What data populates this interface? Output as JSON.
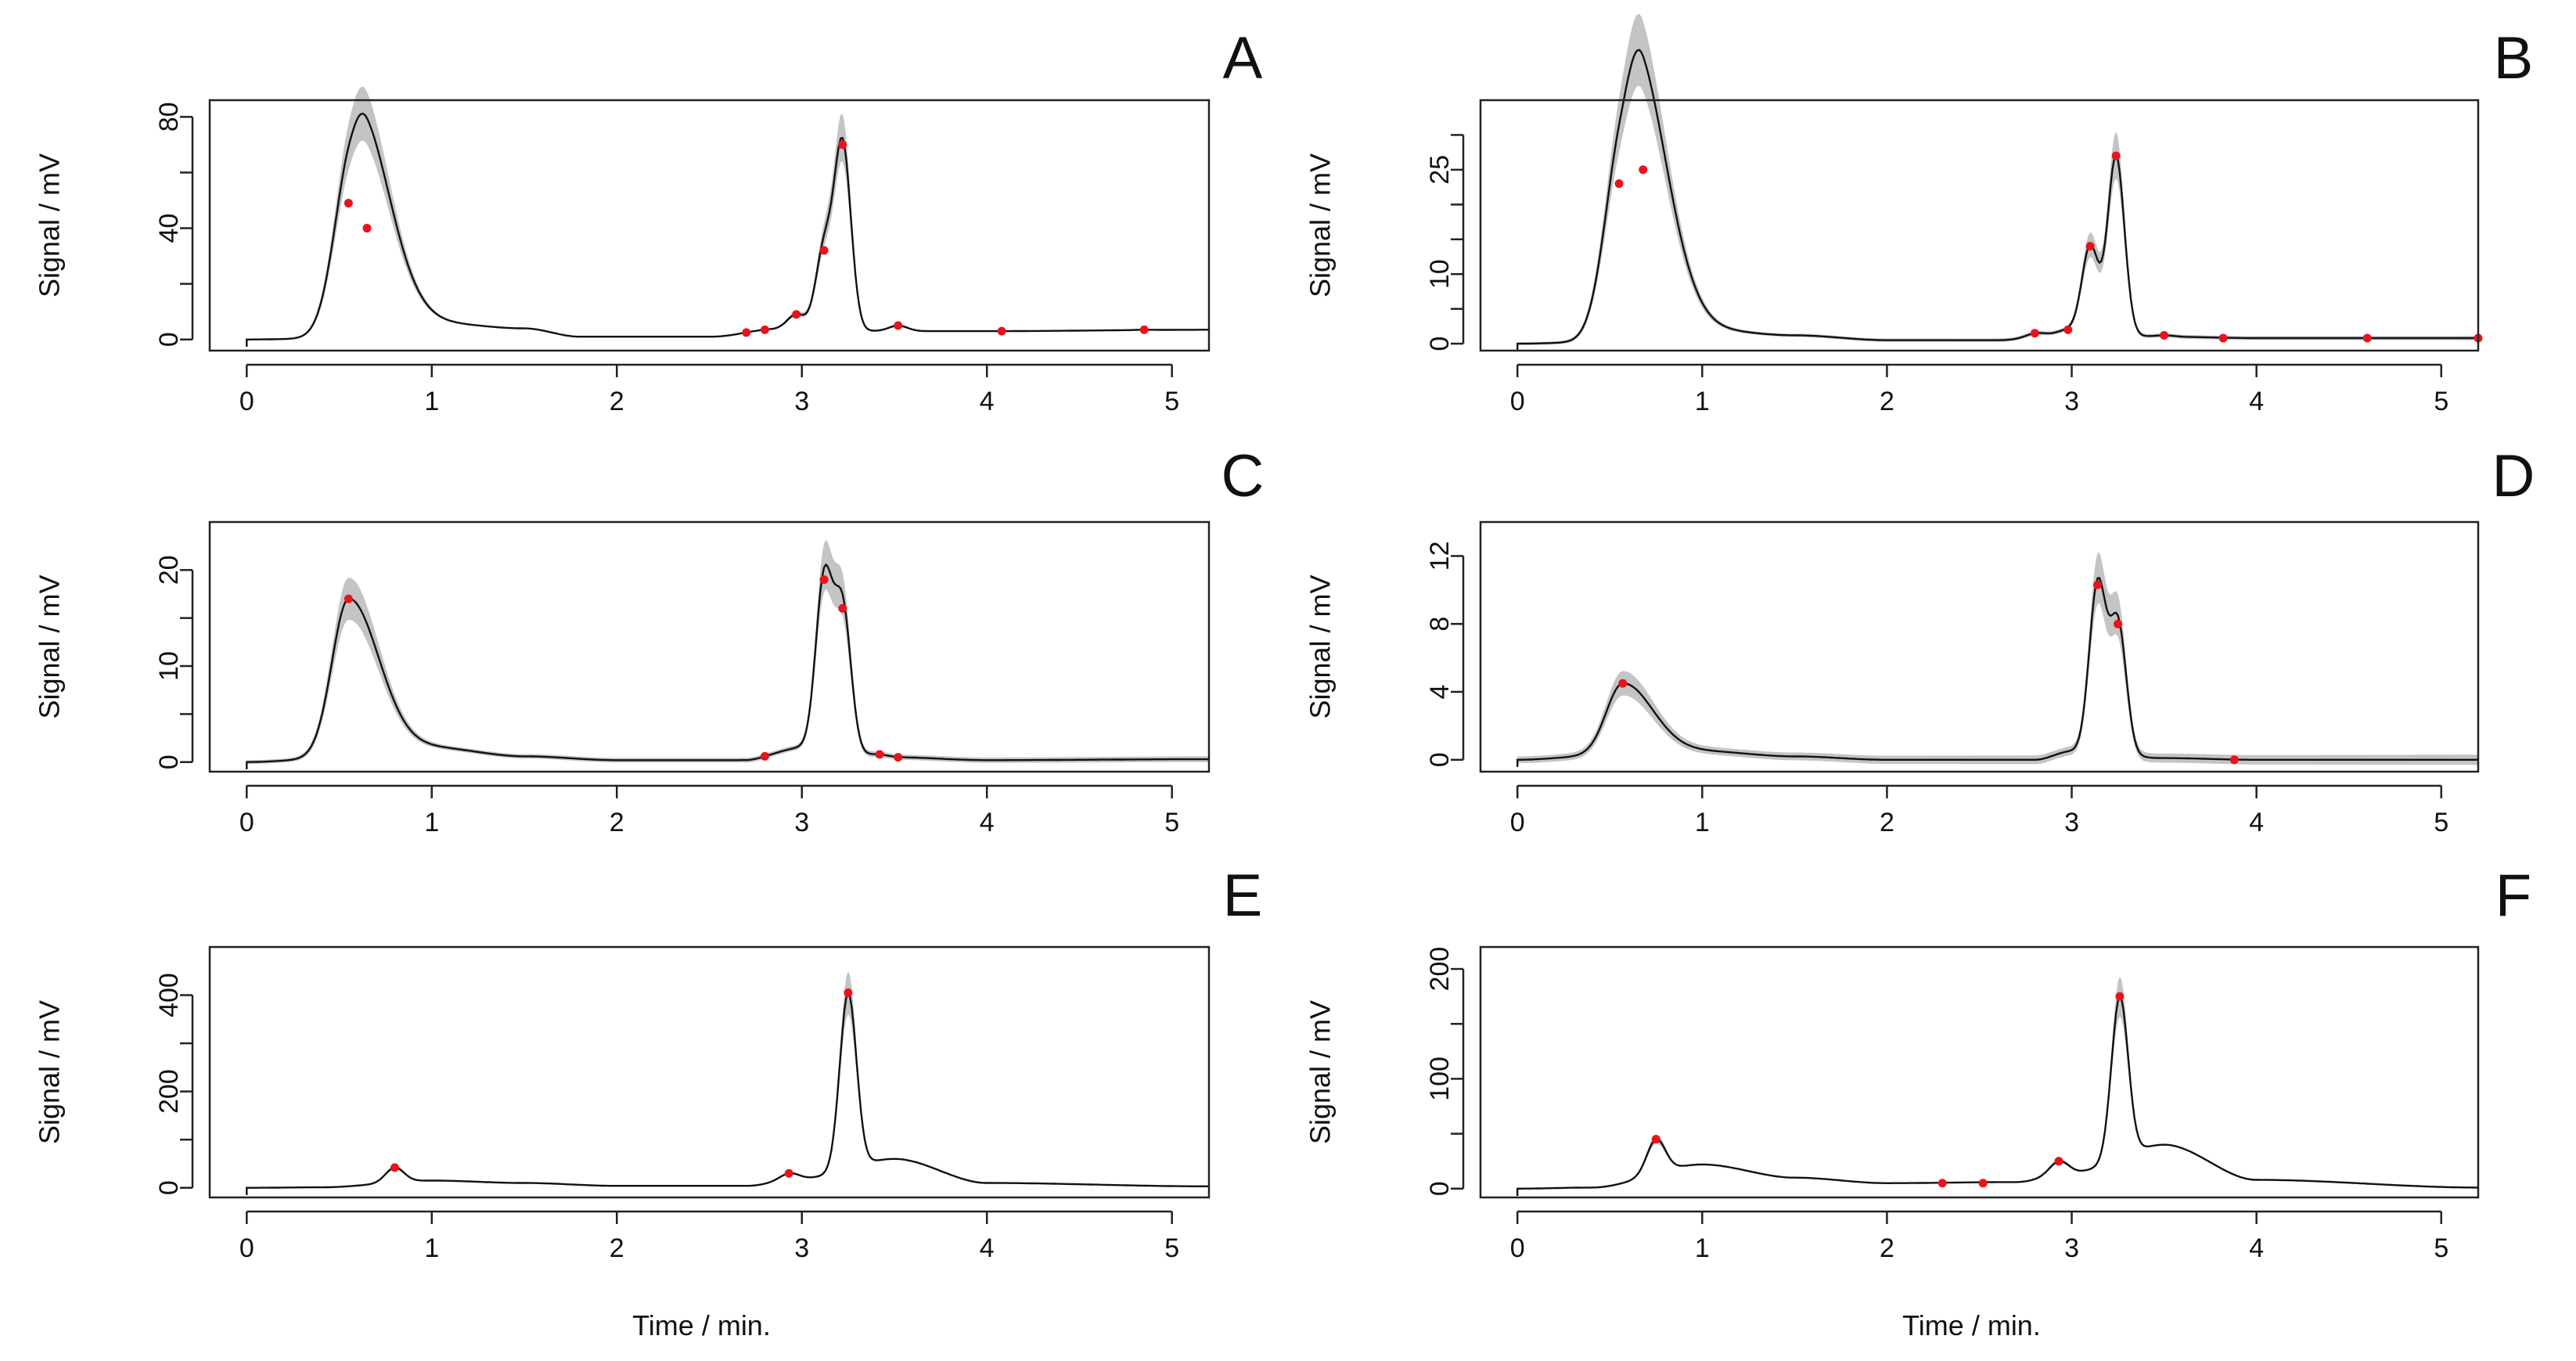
{
  "figure": {
    "x_axis_label": "Time / min.",
    "y_axis_label": "Signal / mV",
    "line_color": "#111111",
    "band_color": "#c4c4c4",
    "peak_marker_color": "#e8141c"
  },
  "chart_data": [
    {
      "panel": "A",
      "type": "line",
      "xlabel": "",
      "ylabel": "Signal / mV",
      "xlim": [
        -0.2,
        5.2
      ],
      "ylim": [
        -4,
        86
      ],
      "xticks": [
        0,
        1,
        2,
        3,
        4,
        5
      ],
      "yticks": [
        0,
        40,
        80
      ],
      "ytick_minor": [
        20,
        60
      ],
      "xtick_labels": [
        "0",
        "1",
        "2",
        "3",
        "4",
        "5"
      ],
      "ytick_labels": [
        "0",
        "40",
        "80"
      ],
      "peaks": [
        [
          0.55,
          49
        ],
        [
          0.65,
          40
        ],
        [
          2.7,
          2.5
        ],
        [
          2.8,
          3.5
        ],
        [
          2.97,
          9
        ],
        [
          3.12,
          32
        ],
        [
          3.22,
          70
        ],
        [
          3.52,
          5
        ],
        [
          4.08,
          3
        ],
        [
          4.85,
          3.5
        ]
      ],
      "baseline": [
        [
          0,
          0
        ],
        [
          0.4,
          0.3
        ],
        [
          1.0,
          6
        ],
        [
          1.5,
          4
        ],
        [
          1.8,
          1
        ],
        [
          2.5,
          1
        ],
        [
          2.9,
          3.5
        ],
        [
          3.5,
          3
        ],
        [
          4.0,
          3
        ],
        [
          5.2,
          3.5
        ]
      ],
      "baseline_width": [
        0.2,
        0.3
      ]
    },
    {
      "panel": "B",
      "type": "line",
      "xlabel": "",
      "ylabel": "Signal / mV",
      "xlim": [
        -0.2,
        5.2
      ],
      "ylim": [
        -1,
        35
      ],
      "xticks": [
        0,
        1,
        2,
        3,
        4,
        5
      ],
      "yticks": [
        0,
        10,
        25
      ],
      "ytick_minor": [
        5,
        15,
        20,
        30
      ],
      "xtick_labels": [
        "0",
        "1",
        "2",
        "3",
        "4",
        "5"
      ],
      "ytick_labels": [
        "0",
        "10",
        "25"
      ],
      "peaks": [
        [
          0.55,
          23
        ],
        [
          0.68,
          25
        ],
        [
          2.8,
          1.5
        ],
        [
          2.98,
          2
        ],
        [
          3.1,
          14
        ],
        [
          3.24,
          27
        ],
        [
          3.5,
          1.2
        ],
        [
          3.82,
          0.8
        ],
        [
          4.6,
          0.8
        ],
        [
          5.2,
          0.8
        ]
      ],
      "baseline": [
        [
          0,
          0
        ],
        [
          0.4,
          0.2
        ],
        [
          1.0,
          2
        ],
        [
          1.5,
          1.2
        ],
        [
          2.0,
          0.5
        ],
        [
          2.6,
          0.5
        ],
        [
          3.0,
          1.5
        ],
        [
          3.5,
          1
        ],
        [
          4.0,
          0.8
        ],
        [
          5.2,
          0.8
        ]
      ],
      "baseline_width": [
        0.2,
        0.3
      ]
    },
    {
      "panel": "C",
      "type": "line",
      "xlabel": "",
      "ylabel": "Signal / mV",
      "xlim": [
        -0.2,
        5.2
      ],
      "ylim": [
        -1,
        25
      ],
      "xticks": [
        0,
        1,
        2,
        3,
        4,
        5
      ],
      "yticks": [
        0,
        10,
        20
      ],
      "ytick_minor": [
        5,
        15
      ],
      "xtick_labels": [
        "0",
        "1",
        "2",
        "3",
        "4",
        "5"
      ],
      "ytick_labels": [
        "0",
        "10",
        "20"
      ],
      "peaks": [
        [
          0.55,
          17
        ],
        [
          2.8,
          0.6
        ],
        [
          3.12,
          19
        ],
        [
          3.22,
          16
        ],
        [
          3.42,
          0.8
        ],
        [
          3.52,
          0.5
        ]
      ],
      "baseline": [
        [
          0,
          0
        ],
        [
          0.4,
          0.3
        ],
        [
          1.0,
          1.5
        ],
        [
          1.5,
          0.6
        ],
        [
          2.0,
          0.2
        ],
        [
          2.7,
          0.2
        ],
        [
          3.0,
          1.5
        ],
        [
          3.5,
          0.5
        ],
        [
          4.0,
          0.2
        ],
        [
          5.2,
          0.3
        ]
      ],
      "baseline_width": [
        0.2,
        0.3
      ]
    },
    {
      "panel": "D",
      "type": "line",
      "xlabel": "",
      "ylabel": "Signal / mV",
      "xlim": [
        -0.2,
        5.2
      ],
      "ylim": [
        -0.7,
        14
      ],
      "xticks": [
        0,
        1,
        2,
        3,
        4,
        5
      ],
      "yticks": [
        0,
        4,
        8,
        12
      ],
      "ytick_minor": [],
      "xtick_labels": [
        "0",
        "1",
        "2",
        "3",
        "4",
        "5"
      ],
      "ytick_labels": [
        "0",
        "4",
        "8",
        "12"
      ],
      "peaks": [
        [
          0.57,
          4.5
        ],
        [
          3.14,
          10.3
        ],
        [
          3.25,
          8
        ],
        [
          3.88,
          0
        ]
      ],
      "baseline": [
        [
          0,
          0
        ],
        [
          0.4,
          0.2
        ],
        [
          1.0,
          0.5
        ],
        [
          1.5,
          0.2
        ],
        [
          2.0,
          0
        ],
        [
          2.8,
          0
        ],
        [
          3.0,
          0.5
        ],
        [
          3.5,
          0.1
        ],
        [
          4.0,
          0
        ],
        [
          5.2,
          0
        ]
      ],
      "baseline_width": [
        0.2,
        0.3
      ]
    },
    {
      "panel": "E",
      "type": "line",
      "xlabel": "Time / min.",
      "ylabel": "Signal / mV",
      "xlim": [
        -0.2,
        5.2
      ],
      "ylim": [
        -20,
        500
      ],
      "xticks": [
        0,
        1,
        2,
        3,
        4,
        5
      ],
      "yticks": [
        0,
        200,
        400
      ],
      "ytick_minor": [
        100,
        300
      ],
      "xtick_labels": [
        "0",
        "1",
        "2",
        "3",
        "4",
        "5"
      ],
      "ytick_labels": [
        "0",
        "200",
        "400"
      ],
      "peaks": [
        [
          0.8,
          42
        ],
        [
          2.93,
          30
        ],
        [
          3.25,
          405
        ]
      ],
      "baseline": [
        [
          0,
          0
        ],
        [
          0.4,
          1
        ],
        [
          1.0,
          15
        ],
        [
          1.5,
          10
        ],
        [
          2.0,
          4
        ],
        [
          2.7,
          4
        ],
        [
          3.0,
          20
        ],
        [
          3.5,
          60
        ],
        [
          4.0,
          10
        ],
        [
          5.2,
          3
        ]
      ],
      "baseline_width": [
        0.4,
        0.8
      ]
    },
    {
      "panel": "F",
      "type": "line",
      "xlabel": "Time / min.",
      "ylabel": "Signal / mV",
      "xlim": [
        -0.2,
        5.2
      ],
      "ylim": [
        -8,
        220
      ],
      "xticks": [
        0,
        1,
        2,
        3,
        4,
        5
      ],
      "yticks": [
        0,
        100,
        200
      ],
      "ytick_minor": [
        50,
        150
      ],
      "xtick_labels": [
        "0",
        "1",
        "2",
        "3",
        "4",
        "5"
      ],
      "ytick_labels": [
        "0",
        "100",
        "200"
      ],
      "peaks": [
        [
          0.75,
          45
        ],
        [
          2.3,
          5
        ],
        [
          2.52,
          5
        ],
        [
          2.93,
          25
        ],
        [
          3.26,
          175
        ]
      ],
      "baseline": [
        [
          0,
          0
        ],
        [
          0.4,
          1
        ],
        [
          1.0,
          22
        ],
        [
          1.5,
          10
        ],
        [
          2.0,
          5
        ],
        [
          2.7,
          6
        ],
        [
          3.0,
          15
        ],
        [
          3.5,
          40
        ],
        [
          4.0,
          8
        ],
        [
          5.2,
          1
        ]
      ],
      "baseline_width": [
        0.4,
        0.8
      ]
    }
  ]
}
